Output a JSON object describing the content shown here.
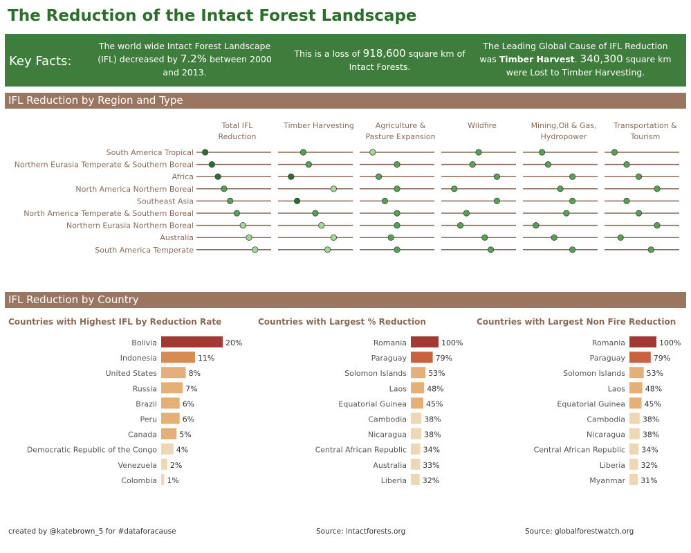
{
  "title": "The Reduction of the Intact Forest Landscape",
  "key_facts": {
    "label": "Key Facts:",
    "fact1": {
      "pre": "The world wide Intact Forest Landscape (IFL) decreased by ",
      "highlight": "7.2%",
      "post": " between 2000 and 2013."
    },
    "fact2": {
      "pre": "This is a loss of ",
      "highlight": "918,600",
      "post": " square km of Intact Forests."
    },
    "fact3": {
      "pre": "The Leading Global Cause of IFL Reduction was ",
      "bold": "Timber Harvest",
      "mid": ". ",
      "highlight": "340,300",
      "post": " square km were Lost to Timber Harvesting."
    }
  },
  "sections": {
    "region": "IFL Reduction by Region and Type",
    "country": "IFL Reduction by Country"
  },
  "footer": {
    "credit": "created by @katebrown_5 for #dataforacause",
    "source1": "Source: intactforests.org",
    "source2": "Source: globalforestwatch.org"
  },
  "colors": {
    "green_dark": "#2f6b3a",
    "green_mid": "#5c9e58",
    "green_light": "#a6d49a",
    "bar_dark_red": "#a23a33",
    "bar_orange": "#d78a52",
    "bar_tan": "#e5b077",
    "bar_pale": "#efd7b6"
  },
  "chart_data": [
    {
      "type": "scatter",
      "title": "IFL Reduction by Region and Type",
      "regions": [
        "South America Tropical",
        "Northern Eurasia Temperate & Southern Boreal",
        "Africa",
        "North America Northern Boreal",
        "Southeast Asia",
        "North America Temperate & Southern Boreal",
        "Northern Eurasia Northern Boreal",
        "Australia",
        "South America Temperate"
      ],
      "columns": [
        {
          "name": "Total IFL Reduction",
          "values": [
            0.03,
            0.14,
            0.24,
            0.34,
            0.44,
            0.55,
            0.65,
            0.75,
            0.85
          ]
        },
        {
          "name": "Timber Harvesting",
          "values": [
            0.3,
            0.39,
            0.1,
            0.8,
            0.2,
            0.5,
            0.6,
            0.8,
            0.7
          ]
        },
        {
          "name": "Agriculture & Pasture Expansion",
          "values": [
            0.1,
            0.5,
            0.2,
            0.5,
            0.3,
            0.5,
            0.5,
            0.4,
            0.5
          ]
        },
        {
          "name": "Wildfire",
          "values": [
            0.5,
            0.4,
            0.8,
            0.1,
            0.8,
            0.3,
            0.2,
            0.6,
            0.7
          ]
        },
        {
          "name": "Mining,Oil & Gas, Hydropower",
          "values": [
            0.2,
            0.3,
            0.7,
            0.5,
            0.7,
            0.6,
            0.1,
            0.4,
            0.7
          ]
        },
        {
          "name": "Transportation & Tourism",
          "values": [
            0.05,
            0.25,
            0.45,
            0.75,
            0.25,
            0.45,
            0.75,
            0.15,
            0.65
          ]
        }
      ],
      "color_levels": {
        "Total IFL Reduction": [
          "dark",
          "dark",
          "dark",
          "mid",
          "mid",
          "mid",
          "light",
          "light",
          "light"
        ],
        "Timber Harvesting": [
          "mid",
          "mid",
          "dark",
          "light",
          "dark",
          "mid",
          "light",
          "light",
          "light"
        ],
        "Agriculture & Pasture Expansion": [
          "light",
          "mid",
          "mid",
          "mid",
          "mid",
          "mid",
          "mid",
          "mid",
          "mid"
        ],
        "Wildfire": [
          "mid",
          "mid",
          "mid",
          "mid",
          "mid",
          "mid",
          "mid",
          "mid",
          "mid"
        ],
        "Mining,Oil & Gas, Hydropower": [
          "mid",
          "mid",
          "mid",
          "mid",
          "mid",
          "mid",
          "mid",
          "mid",
          "mid"
        ],
        "Transportation & Tourism": [
          "mid",
          "mid",
          "mid",
          "mid",
          "mid",
          "mid",
          "mid",
          "mid",
          "mid"
        ]
      }
    },
    {
      "type": "bar",
      "title": "Countries with Highest IFL by Reduction Rate",
      "categories": [
        "Bolivia",
        "Indonesia",
        "United States",
        "Russia",
        "Brazil",
        "Peru",
        "Canada",
        "Democratic Republic of the Congo",
        "Venezuela",
        "Colombia"
      ],
      "values": [
        20,
        11,
        8,
        7,
        6,
        6,
        5,
        4,
        2,
        1
      ],
      "labels": [
        "20%",
        "11%",
        "8%",
        "7%",
        "6%",
        "6%",
        "5%",
        "4%",
        "2%",
        "1%"
      ],
      "max": 20
    },
    {
      "type": "bar",
      "title": "Countries with Largest % Reduction",
      "categories": [
        "Romania",
        "Paraguay",
        "Solomon Islands",
        "Laos",
        "Equatorial Guinea",
        "Cambodia",
        "Nicaragua",
        "Central African Republic",
        "Australia",
        "Liberia"
      ],
      "values": [
        100,
        79,
        53,
        48,
        45,
        38,
        38,
        34,
        33,
        32
      ],
      "labels": [
        "100%",
        "79%",
        "53%",
        "48%",
        "45%",
        "38%",
        "38%",
        "34%",
        "33%",
        "32%"
      ],
      "max": 100
    },
    {
      "type": "bar",
      "title": "Countries with Largest Non Fire Reduction",
      "categories": [
        "Romania",
        "Paraguay",
        "Solomon Islands",
        "Laos",
        "Equatorial Guinea",
        "Cambodia",
        "Nicaragua",
        "Central African Republic",
        "Liberia",
        "Myanmar"
      ],
      "values": [
        100,
        79,
        53,
        48,
        45,
        38,
        38,
        34,
        32,
        31
      ],
      "labels": [
        "100%",
        "79%",
        "53%",
        "48%",
        "45%",
        "38%",
        "38%",
        "34%",
        "32%",
        "31%"
      ],
      "max": 100
    }
  ]
}
